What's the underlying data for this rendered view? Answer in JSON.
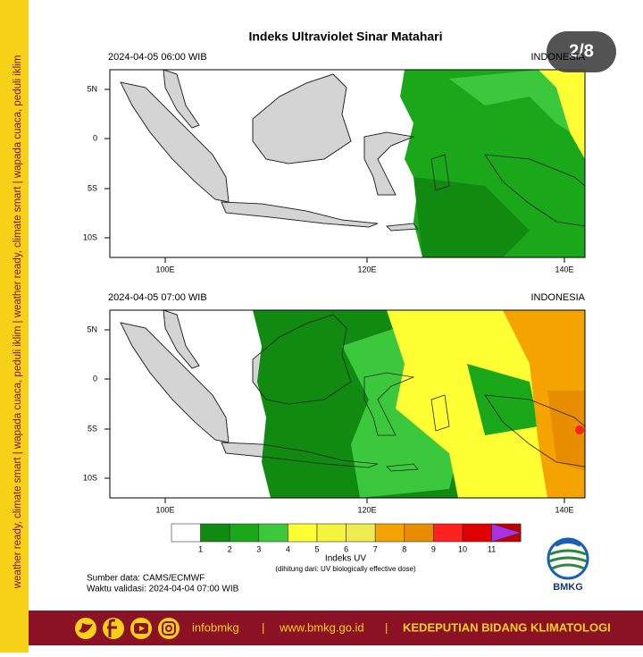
{
  "page_indicator": "2/8",
  "side_text": "weather ready, climate smart  |  wapada cuaca, peduli iklim  |  weather ready, climate smart  |  wapada cuaca, peduli iklim",
  "title": "Indeks Ultraviolet Sinar Matahari",
  "panels": [
    {
      "datetime": "2024-04-05  06:00 WIB",
      "region": "INDONESIA"
    },
    {
      "datetime": "2024-04-05  07:00 WIB",
      "region": "INDONESIA"
    }
  ],
  "lat_labels": [
    "5N",
    "0",
    "5S",
    "10S"
  ],
  "lon_labels": [
    "100E",
    "120E",
    "140E"
  ],
  "legend": {
    "labels": [
      "1",
      "2",
      "3",
      "4",
      "5",
      "6",
      "7",
      "8",
      "9",
      "10",
      "11"
    ],
    "colors": [
      "#ffffff",
      "#108a10",
      "#1aa81a",
      "#3cc83c",
      "#ffff33",
      "#f4f43c",
      "#eded52",
      "#f5a300",
      "#e88c00",
      "#ff2020",
      "#e00000",
      "#c00000",
      "#a832e0"
    ],
    "title": "Indeks UV",
    "note": "(dihitung dari: UV biologically effective dose)"
  },
  "source": "Sumber data: CAMS/ECMWF",
  "validity": "Waktu validasi: 2024-04-04 07:00 WIB",
  "logo": "BMKG",
  "footer": {
    "handle": "infobmkg",
    "website": "www.bmkg.go.id",
    "department": "KEDEPUTIAN BIDANG KLIMATOLOGI"
  }
}
